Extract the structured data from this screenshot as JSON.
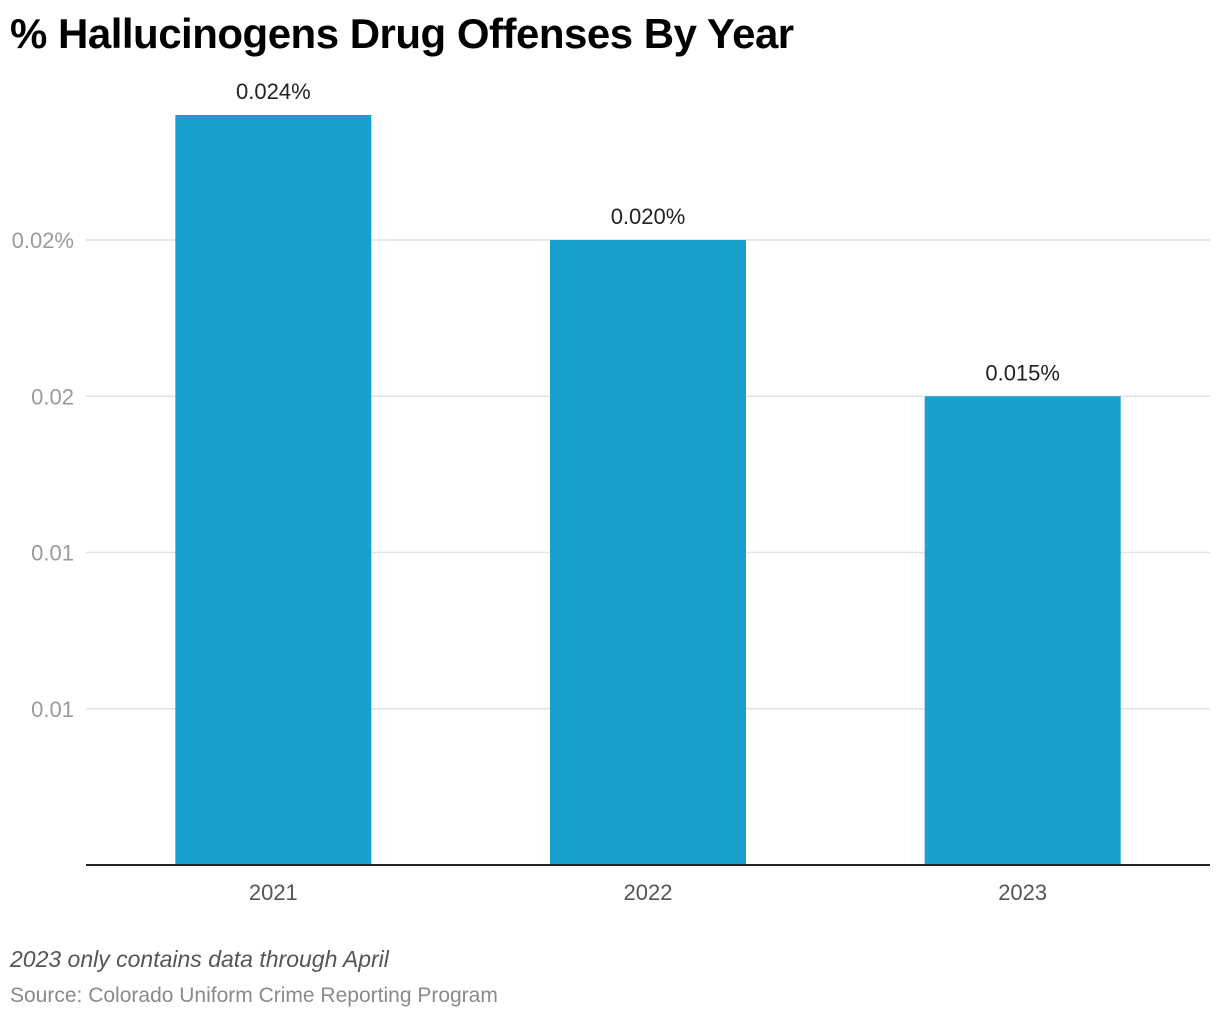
{
  "chart_data": {
    "type": "bar",
    "title": "% Hallucinogens Drug Offenses By Year",
    "categories": [
      "2021",
      "2022",
      "2023"
    ],
    "values": [
      0.024,
      0.02,
      0.015
    ],
    "value_labels": [
      "0.024%",
      "0.020%",
      "0.015%"
    ],
    "y_ticks": [
      {
        "value": 0.005,
        "label": "0.01"
      },
      {
        "value": 0.01,
        "label": "0.01"
      },
      {
        "value": 0.015,
        "label": "0.02"
      },
      {
        "value": 0.02,
        "label": "0.02%"
      }
    ],
    "ylim": [
      0,
      0.025
    ],
    "xlabel": "",
    "ylabel": "",
    "grid": true,
    "bar_color": "#1aa0ce",
    "note": "2023 only contains data through April",
    "source": "Source: Colorado Uniform Crime Reporting Program"
  }
}
